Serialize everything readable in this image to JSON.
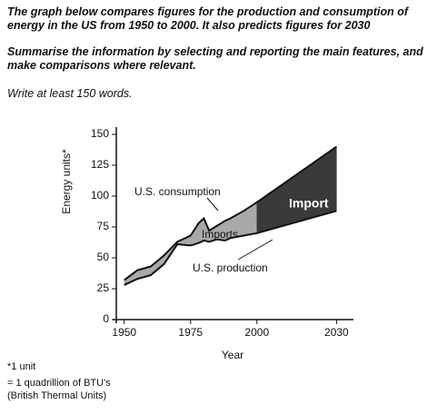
{
  "document": {
    "prompt": "The graph below compares figures for the production and consumption of energy in the US from 1950 to 2000. It also predicts figures for 2030",
    "instruction": "Summarise the information by selecting and reporting the main features, and make comparisons where relevant.",
    "word_limit": "Write at least 150 words.",
    "footnote": [
      "*1 unit",
      "= 1 quadrillion of BTU's",
      "(British Thermal Units)"
    ]
  },
  "chart_data": {
    "type": "line",
    "x_label": "Year",
    "y_label": "Energy units*",
    "x": [
      1950,
      1955,
      1960,
      1965,
      1970,
      1975,
      1978,
      1980,
      1982,
      1985,
      1988,
      1990,
      1995,
      2000,
      2030
    ],
    "series": [
      {
        "name": "U.S. consumption",
        "color": "#111111",
        "values": [
          32,
          40,
          43,
          52,
          63,
          68,
          78,
          82,
          72,
          76,
          80,
          82,
          88,
          95,
          140
        ]
      },
      {
        "name": "U.S. production",
        "color": "#111111",
        "values": [
          28,
          33,
          36,
          45,
          61,
          60,
          62,
          64,
          63,
          65,
          64,
          66,
          68,
          70,
          88
        ]
      }
    ],
    "annotations": [
      "Imports",
      "Import"
    ],
    "xlim": [
      1947,
      2035
    ],
    "xticks": [
      1950,
      1975,
      2000,
      2030
    ],
    "ylim": [
      0,
      150
    ],
    "yticks": [
      0,
      25,
      50,
      75,
      100,
      125,
      150
    ],
    "area_colors": [
      "#a9a9a9",
      "#3a3a3a"
    ]
  }
}
